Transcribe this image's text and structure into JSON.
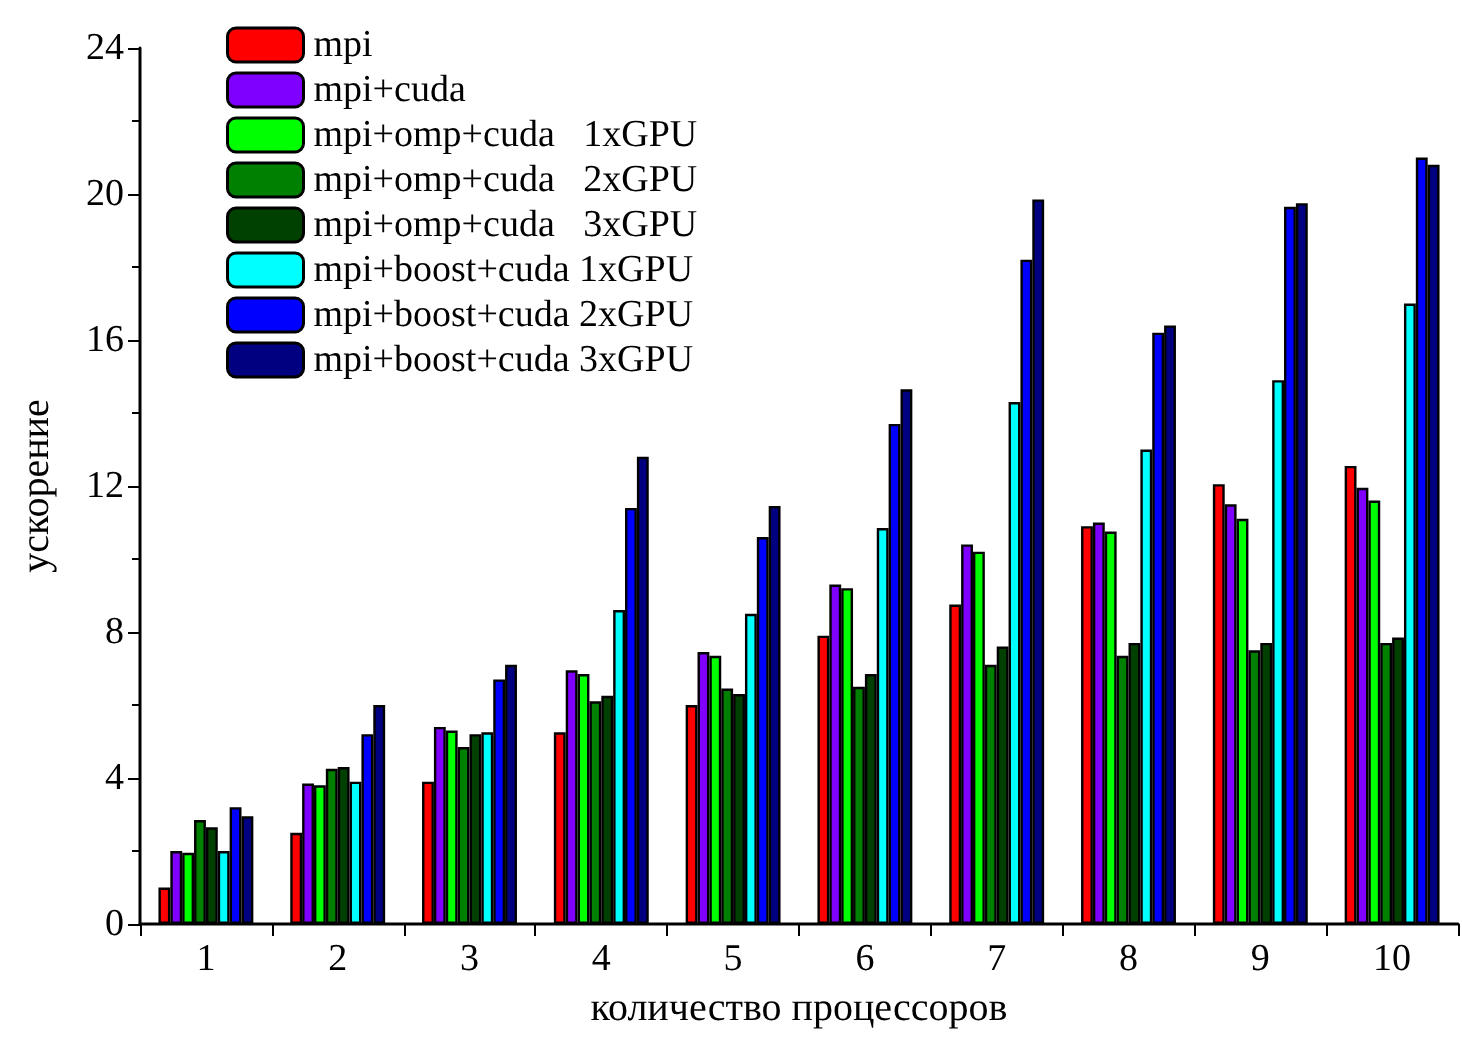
{
  "chart_data": {
    "type": "bar",
    "xlabel": "количество процессоров",
    "ylabel": "ускорение",
    "categories": [
      "1",
      "2",
      "3",
      "4",
      "5",
      "6",
      "7",
      "8",
      "9",
      "10"
    ],
    "series": [
      {
        "name": "mpi",
        "color": "#ff0000",
        "values": [
          1.0,
          2.5,
          3.9,
          5.25,
          6.0,
          7.9,
          8.75,
          10.9,
          12.05,
          12.55
        ]
      },
      {
        "name": "mpi+cuda",
        "color": "#8000ff",
        "values": [
          2.0,
          3.85,
          5.4,
          6.95,
          7.45,
          9.3,
          10.4,
          11.0,
          11.5,
          11.95
        ]
      },
      {
        "name": "mpi+omp+cuda   1xGPU",
        "color": "#00ff00",
        "values": [
          1.95,
          3.8,
          5.3,
          6.85,
          7.35,
          9.2,
          10.2,
          10.75,
          11.1,
          11.6
        ]
      },
      {
        "name": "mpi+omp+cuda   2xGPU",
        "color": "#008000",
        "values": [
          2.85,
          4.25,
          4.85,
          6.1,
          6.45,
          6.5,
          7.1,
          7.35,
          7.5,
          7.7
        ]
      },
      {
        "name": "mpi+omp+cuda   3xGPU",
        "color": "#004000",
        "values": [
          2.65,
          4.3,
          5.2,
          6.25,
          6.3,
          6.85,
          7.6,
          7.7,
          7.7,
          7.85
        ]
      },
      {
        "name": "mpi+boost+cuda 1xGPU",
        "color": "#00ffff",
        "values": [
          2.0,
          3.9,
          5.25,
          8.6,
          8.5,
          10.85,
          14.3,
          13.0,
          14.9,
          17.0
        ]
      },
      {
        "name": "mpi+boost+cuda 2xGPU",
        "color": "#0000ff",
        "values": [
          3.2,
          5.2,
          6.7,
          11.4,
          10.6,
          13.7,
          18.2,
          16.2,
          19.65,
          21.0
        ]
      },
      {
        "name": "mpi+boost+cuda 3xGPU",
        "color": "#000080",
        "values": [
          2.95,
          6.0,
          7.1,
          12.8,
          11.45,
          14.65,
          19.85,
          16.4,
          19.75,
          20.8
        ]
      }
    ],
    "ylim": [
      0,
      24
    ],
    "yticks": [
      0,
      4,
      8,
      12,
      16,
      20,
      24
    ],
    "grid": false,
    "legend": "top left"
  }
}
